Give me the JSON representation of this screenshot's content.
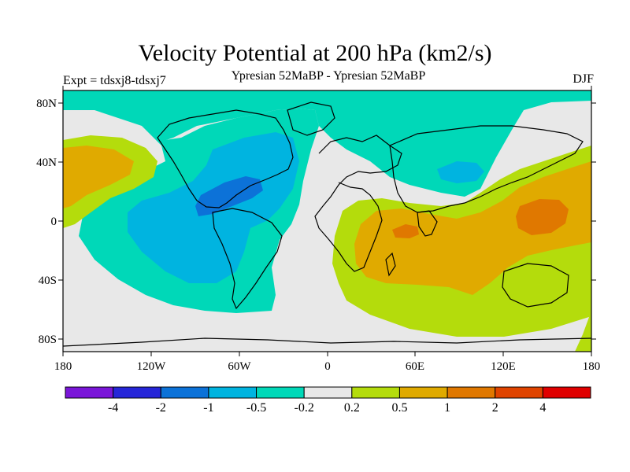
{
  "title": "Velocity Potential at 200 hPa (km2/s)",
  "subtitle": "Ypresian  52MaBP - Ypresian  52MaBP",
  "left_note": "Expt = tdsxj8-tdsxj7",
  "right_note": "DJF",
  "lat_ticks": [
    "80N",
    "40N",
    "0",
    "40S",
    "80S"
  ],
  "lon_ticks": [
    "180",
    "120W",
    "60W",
    "0",
    "60E",
    "120E",
    "180"
  ],
  "colorbar": {
    "colors": [
      "#7a16d8",
      "#2626d8",
      "#0c72d8",
      "#00b4e0",
      "#00d8b8",
      "#e8e8e8",
      "#b4dc0c",
      "#e0aa00",
      "#e07800",
      "#e04400",
      "#e00000"
    ],
    "labels": [
      "-4",
      "-2",
      "-1",
      "-0.5",
      "-0.2",
      "0.2",
      "0.5",
      "1",
      "2",
      "4"
    ]
  }
}
